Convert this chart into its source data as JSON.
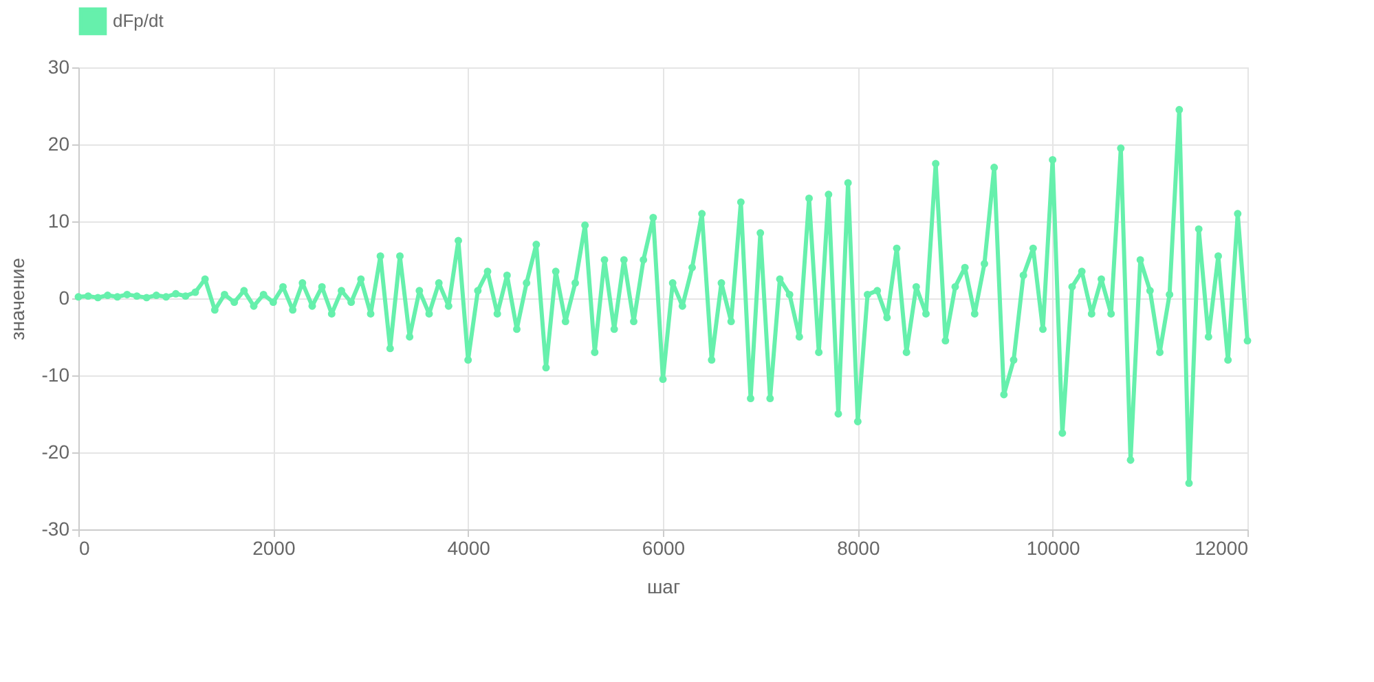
{
  "chart_data": {
    "type": "line",
    "xlabel": "шаг",
    "ylabel": "значение",
    "x": [
      0,
      100,
      200,
      300,
      400,
      500,
      600,
      700,
      800,
      900,
      1000,
      1100,
      1200,
      1300,
      1400,
      1500,
      1600,
      1700,
      1800,
      1900,
      2000,
      2100,
      2200,
      2300,
      2400,
      2500,
      2600,
      2700,
      2800,
      2900,
      3000,
      3100,
      3200,
      3300,
      3400,
      3500,
      3600,
      3700,
      3800,
      3900,
      4000,
      4100,
      4200,
      4300,
      4400,
      4500,
      4600,
      4700,
      4800,
      4900,
      5000,
      5100,
      5200,
      5300,
      5400,
      5500,
      5600,
      5700,
      5800,
      5900,
      6000,
      6100,
      6200,
      6300,
      6400,
      6500,
      6600,
      6700,
      6800,
      6900,
      7000,
      7100,
      7200,
      7300,
      7400,
      7500,
      7600,
      7700,
      7800,
      7900,
      8000,
      8100,
      8200,
      8300,
      8400,
      8500,
      8600,
      8700,
      8800,
      8900,
      9000,
      9100,
      9200,
      9300,
      9400,
      9500,
      9600,
      9700,
      9800,
      9900,
      10000,
      10100,
      10200,
      10300,
      10400,
      10500,
      10600,
      10700,
      10800,
      10900,
      11000,
      11100,
      11200,
      11300,
      11400,
      11500,
      11600,
      11700,
      11800,
      11900,
      12000
    ],
    "series": [
      {
        "name": "dFp/dt",
        "color": "#66f0ac",
        "values": [
          0.2,
          0.3,
          0.1,
          0.4,
          0.2,
          0.5,
          0.3,
          0.1,
          0.4,
          0.2,
          0.6,
          0.3,
          0.8,
          2.5,
          -1.5,
          0.5,
          -0.5,
          1,
          -1,
          0.5,
          -0.5,
          1.5,
          -1.5,
          2,
          -1,
          1.5,
          -2,
          1,
          -0.5,
          2.5,
          -2,
          5.5,
          -6.5,
          5.5,
          -5,
          1,
          -2,
          2,
          -1,
          7.5,
          -8,
          1,
          3.5,
          -2,
          3,
          -4,
          2,
          7,
          -9,
          3.5,
          -3,
          2,
          9.5,
          -7,
          5,
          -4,
          5,
          -3,
          5,
          10.5,
          -10.5,
          2,
          -1,
          4,
          11,
          -8,
          2,
          -3,
          12.5,
          -13,
          8.5,
          -13,
          2.5,
          0.5,
          -5,
          13,
          -7,
          13.5,
          -15,
          15,
          -16,
          0.5,
          1,
          -2.5,
          6.5,
          -7,
          1.5,
          -2,
          17.5,
          -5.5,
          1.5,
          4,
          -2,
          4.5,
          17,
          -12.5,
          -8,
          3,
          6.5,
          -4,
          18,
          -17.5,
          1.5,
          3.5,
          -2,
          2.5,
          -2,
          19.5,
          -21,
          5,
          1,
          -7,
          0.5,
          24.5,
          -24,
          9,
          -5,
          5.5,
          -8,
          11,
          -5.5
        ]
      }
    ],
    "xlim": [
      0,
      12000
    ],
    "xticks": [
      0,
      2000,
      4000,
      6000,
      8000,
      10000,
      12000
    ],
    "ylim": [
      -30,
      30
    ],
    "yticks": [
      -30,
      -20,
      -10,
      0,
      10,
      20,
      30
    ],
    "grid": true,
    "legend": "top",
    "marker": "circle",
    "line_style": "solid"
  }
}
